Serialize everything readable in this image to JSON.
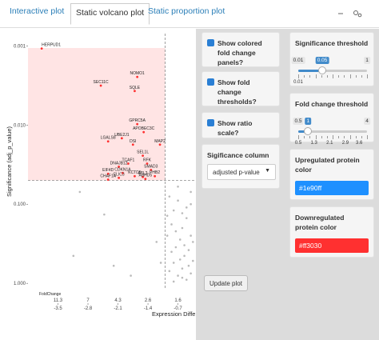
{
  "tabs": [
    "Interactive plot",
    "Static volcano plot",
    "Static proportion plot"
  ],
  "active_tab": 1,
  "plot": {
    "type": "scatter",
    "y_label": "Significance (adj_p_value)",
    "x_label": "Expression Differe",
    "log_y": true,
    "ylim": [
      1.2,
      0.0007
    ],
    "yticks": [
      0.001,
      {
        "value": 0.01,
        "label": "0.010"
      },
      {
        "value": 0.1,
        "label": "0.100"
      },
      {
        "value": 1,
        "label": "1.000"
      }
    ],
    "xlim": [
      -4.2,
      -0.3
    ],
    "xticks": [
      -3.5,
      -2.8,
      -2.1,
      -1.4,
      -0.7
    ],
    "fold_label": "FoldChange",
    "fold_ticks": [
      {
        "value": -3.5,
        "label": "11.3"
      },
      {
        "value": -2.8,
        "label": "7"
      },
      {
        "value": -2.1,
        "label": "4.3"
      },
      {
        "value": -1.4,
        "label": "2.6"
      },
      {
        "value": -0.7,
        "label": "1.6"
      }
    ],
    "genes": [
      {
        "name": "HERPUD1",
        "x": -3.88,
        "p": 0.00108
      },
      {
        "name": "NOMO1",
        "x": -1.65,
        "p": 0.00247
      },
      {
        "name": "SEC11C",
        "x": -2.5,
        "p": 0.00318
      },
      {
        "name": "SQLE",
        "x": -1.71,
        "p": 0.00372
      },
      {
        "name": "GPRC5A",
        "x": -1.65,
        "p": 0.00975
      },
      {
        "name": "APOBEC3C",
        "x": -1.5,
        "p": 0.0123
      },
      {
        "name": "LGALS8",
        "x": -2.33,
        "p": 0.0161
      },
      {
        "name": "UBE2J1",
        "x": -2.01,
        "p": 0.0147
      },
      {
        "name": "DSI",
        "x": -1.75,
        "p": 0.0177
      },
      {
        "name": "MAP2",
        "x": -1.12,
        "p": 0.0177
      },
      {
        "name": "SEL1L",
        "x": -1.52,
        "p": 0.0244
      },
      {
        "name": "TCAF1",
        "x": -1.86,
        "p": 0.0307
      },
      {
        "name": "RFK",
        "x": -1.42,
        "p": 0.0307
      },
      {
        "name": "DNAJB12",
        "x": -2.08,
        "p": 0.0336
      },
      {
        "name": "CDKN1A",
        "x": -1.99,
        "p": 0.0404
      },
      {
        "name": "EIF4D",
        "x": -2.33,
        "p": 0.0413
      },
      {
        "name": "SMAD3",
        "x": -1.33,
        "p": 0.0369
      },
      {
        "name": "CLIC3",
        "x": -2.08,
        "p": 0.0465
      },
      {
        "name": "KCTD5",
        "x": -1.71,
        "p": 0.0443
      },
      {
        "name": "ATL2",
        "x": -1.52,
        "p": 0.0453
      },
      {
        "name": "PHB2",
        "x": -1.24,
        "p": 0.0443
      },
      {
        "name": "ABHD5",
        "x": -1.46,
        "p": 0.048
      },
      {
        "name": "CHAF1A",
        "x": -2.33,
        "p": 0.049
      }
    ],
    "other_x": [
      -0.9,
      -0.8,
      -0.7,
      -0.6,
      -0.5,
      -0.4,
      -0.35,
      -0.95,
      -0.85,
      -0.75,
      -0.65,
      -0.55,
      -0.45,
      -0.9,
      -0.8,
      -0.7,
      -0.6,
      -0.5,
      -0.4,
      -0.85,
      -0.75,
      -0.65,
      -0.55,
      -0.45,
      -0.35,
      -0.7,
      -0.6,
      -0.5,
      -0.4,
      -1.2,
      -2.99,
      -3.14,
      -2.42,
      -2.2,
      -1.8,
      -1.1,
      -0.95,
      -0.8,
      -0.6,
      -0.4
    ],
    "other_p": [
      0.08,
      0.12,
      0.06,
      0.2,
      0.15,
      0.1,
      0.3,
      0.25,
      0.4,
      0.35,
      0.5,
      0.45,
      0.6,
      0.7,
      0.55,
      0.8,
      0.65,
      0.9,
      0.75,
      0.18,
      0.22,
      0.28,
      0.33,
      0.38,
      0.52,
      0.09,
      0.13,
      0.11,
      0.07,
      0.3,
      0.07,
      0.45,
      0.135,
      0.6,
      0.8,
      0.55,
      0.14,
      0.95,
      0.85,
      0.25
    ]
  },
  "controls": {
    "show_colored": {
      "label": "Show colored fold change panels?",
      "checked": true
    },
    "show_thresholds": {
      "label": "Show fold change thresholds?",
      "checked": true
    },
    "show_ratio": {
      "label": "Show ratio scale?",
      "checked": true
    },
    "sig_column": {
      "label": "Sigificance column",
      "value": "adjusted p-value"
    },
    "sig_threshold": {
      "label": "Significance threshold",
      "min": 0.01,
      "max": 1,
      "value": 0.05
    },
    "fc_threshold": {
      "label": "Fold change threshold",
      "min": 0.5,
      "max": 4,
      "value": 1,
      "grid": [
        1.3,
        2.1,
        2.9,
        3.6
      ]
    },
    "up_color": {
      "label": "Upregulated protein color",
      "value": "#1e90ff"
    },
    "down_color": {
      "label": "Downregulated protein color",
      "value": "#ff3030"
    },
    "update_button": "Update plot"
  }
}
